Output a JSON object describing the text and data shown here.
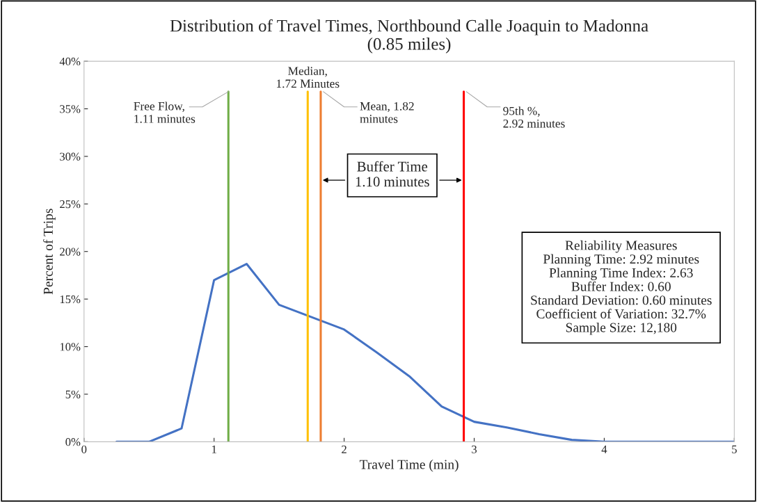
{
  "chart_data": {
    "type": "line",
    "title": "Distribution of Travel Times, Northbound Calle Joaquin to Madonna\n(0.85 miles)",
    "xlabel": "Travel Time (min)",
    "ylabel": "Percent of Trips",
    "x": [
      0.25,
      0.5,
      0.75,
      1.0,
      1.25,
      1.5,
      1.75,
      2.0,
      2.25,
      2.5,
      2.75,
      3.0,
      3.25,
      3.5,
      3.75,
      4.0,
      4.25,
      4.5,
      4.75,
      5.0
    ],
    "series": [
      {
        "color": "#4472c4",
        "values": [
          0,
          0,
          1.4,
          17.0,
          18.7,
          14.4,
          13.1,
          11.8,
          9.4,
          6.9,
          3.7,
          2.1,
          1.5,
          0.8,
          0.2,
          0,
          0,
          0,
          0,
          0
        ]
      }
    ],
    "xlim": [
      0,
      5
    ],
    "xticks": [
      0,
      1,
      2,
      3,
      4,
      5
    ],
    "ylim": [
      0,
      40
    ],
    "yticks": [
      {
        "value": 0,
        "label": "0%"
      },
      {
        "value": 5,
        "label": "5%"
      },
      {
        "value": 10,
        "label": "10%"
      },
      {
        "value": 15,
        "label": "15%"
      },
      {
        "value": 20,
        "label": "20%"
      },
      {
        "value": 25,
        "label": "25%"
      },
      {
        "value": 30,
        "label": "30%"
      },
      {
        "value": 35,
        "label": "35%"
      },
      {
        "value": 40,
        "label": "40%"
      }
    ],
    "ref_lines": [
      {
        "axis": "x",
        "value": 1.11,
        "label": "Free Flow,\n1.11 minutes",
        "color": "#70ad47"
      },
      {
        "axis": "x",
        "value": 1.72,
        "label": "Median,\n1.72 Minutes",
        "color": "#ffc000"
      },
      {
        "axis": "x",
        "value": 1.82,
        "label": "Mean, 1.82\nminutes",
        "color": "#ed7d31"
      },
      {
        "axis": "x",
        "value": 2.92,
        "label": "95th %,\n2.92 minutes",
        "color": "#ff0000"
      }
    ],
    "annotations": [
      {
        "text": "Buffer Time\n1.10 minutes",
        "x": 2.92,
        "y": 27.5
      },
      "Reliability Measures\nPlanning Time: 2.92 minutes\nPlanning Time Index: 2.63\nBuffer Index: 0.60\nStandard Deviation: 0.60 minutes\nCoefficient of Variation: 32.7%\nSample Size: 12,180"
    ],
    "grid": false
  }
}
